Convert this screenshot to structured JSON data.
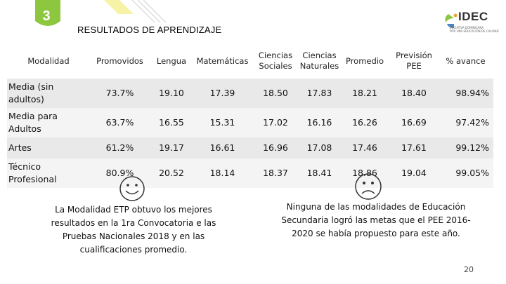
{
  "slide": {
    "number": "3",
    "page": "20"
  },
  "title": "RESULTADOS DE APRENDIZAJE",
  "logo": {
    "text": "IDEC",
    "subtitle1": "INICIATIVA DOMINICANA",
    "subtitle2": "POR UNA EDUCACIÓN DE CALIDAD"
  },
  "table": {
    "headers": {
      "modalidad": "Modalidad",
      "promovidos": "Promovidos",
      "lengua": "Lengua",
      "matematicas": "Matemáticas",
      "cs_line1": "Ciencias",
      "cs_line2": "Sociales",
      "cn_line1": "Ciencias",
      "cn_line2": "Naturales",
      "promedio": "Promedio",
      "prevision_line1": "Previsión",
      "prevision_line2": "PEE",
      "avance": "% avance"
    },
    "rows": [
      {
        "modalidad": "Media (sin adultos)",
        "promovidos": "73.7%",
        "lengua": "19.10",
        "matematicas": "17.39",
        "sociales": "18.50",
        "naturales": "17.83",
        "promedio": "18.21",
        "prevision": "18.40",
        "avance": "98.94%"
      },
      {
        "modalidad": "Media para Adultos",
        "promovidos": "63.7%",
        "lengua": "16.55",
        "matematicas": "15.31",
        "sociales": "17.02",
        "naturales": "16.16",
        "promedio": "16.26",
        "prevision": "16.69",
        "avance": "97.42%"
      },
      {
        "modalidad": "Artes",
        "promovidos": "61.2%",
        "lengua": "19.17",
        "matematicas": "16.61",
        "sociales": "16.96",
        "naturales": "17.08",
        "promedio": "17.46",
        "prevision": "17.61",
        "avance": "99.12%"
      },
      {
        "modalidad": "Técnico Profesional",
        "promovidos": "80.9%",
        "lengua": "20.52",
        "matematicas": "18.14",
        "sociales": "18.37",
        "naturales": "18.41",
        "promedio": "18.86",
        "prevision": "19.04",
        "avance": "99.05%"
      }
    ]
  },
  "notes": {
    "left": "La Modalidad ETP obtuvo los mejores resultados en la 1ra Convocatoria e las Pruebas Nacionales 2018 y en las cualificaciones promedio.",
    "right": "Ninguna de las modalidades de Educación Secundaria logró las metas que el PEE 2016-2020 se había propuesto para este año."
  },
  "icons": {
    "happy": "smiley-face-icon",
    "sad": "sad-face-icon"
  },
  "colors": {
    "badge": "#8dc63f",
    "accent_stripe": "#f7f3a6"
  }
}
